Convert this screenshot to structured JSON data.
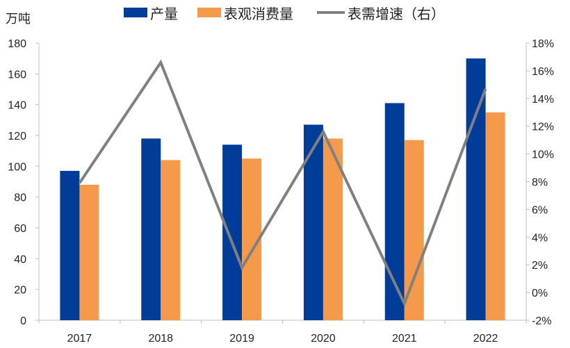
{
  "chart_data": {
    "type": "bar",
    "title": "",
    "y_left_label": "万吨",
    "y_right_label": "",
    "categories": [
      "2017",
      "2018",
      "2019",
      "2020",
      "2021",
      "2022"
    ],
    "series": [
      {
        "name": "产量",
        "type": "bar",
        "axis": "left",
        "color": "#003d99",
        "values": [
          97,
          118,
          114,
          127,
          141,
          170
        ]
      },
      {
        "name": "表观消费量",
        "type": "bar",
        "axis": "left",
        "color": "#f59a4b",
        "values": [
          88,
          104,
          105,
          118,
          117,
          135
        ]
      },
      {
        "name": "表需增速（右）",
        "type": "line",
        "axis": "right",
        "color": "#808080",
        "values": [
          7.9,
          16.6,
          1.8,
          11.6,
          -0.8,
          14.7
        ]
      }
    ],
    "y_left": {
      "min": 0,
      "max": 180,
      "ticks": [
        "0",
        "20",
        "40",
        "60",
        "80",
        "100",
        "120",
        "140",
        "160",
        "180"
      ]
    },
    "y_right": {
      "min": -2,
      "max": 18,
      "ticks": [
        "-2%",
        "0%",
        "2%",
        "4%",
        "6%",
        "8%",
        "10%",
        "12%",
        "14%",
        "16%",
        "18%"
      ]
    },
    "legend_position": "top",
    "grid": false
  }
}
